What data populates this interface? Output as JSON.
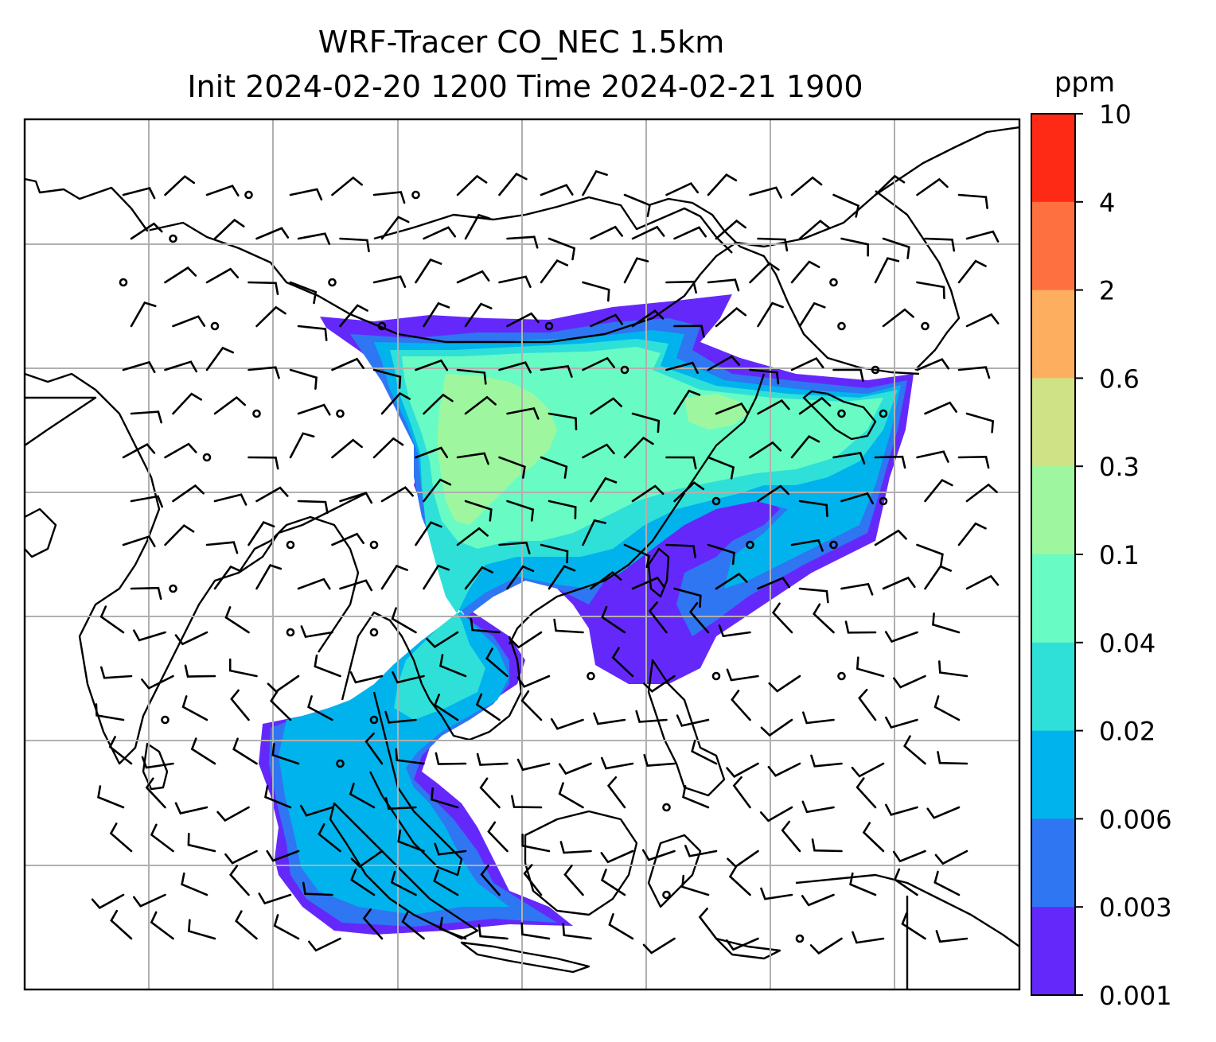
{
  "title": {
    "line1": "WRF-Tracer CO_NEC 1.5km",
    "line2": "Init 2024-02-20 1200 Time 2024-02-21 1900"
  },
  "colorbar": {
    "unit": "ppm",
    "levels": [
      {
        "label": "10",
        "color": "#ff2a16"
      },
      {
        "label": "4",
        "color": "#ff7040"
      },
      {
        "label": "2",
        "color": "#fdae5f"
      },
      {
        "label": "0.6",
        "color": "#cfe285"
      },
      {
        "label": "0.3",
        "color": "#9ef79e"
      },
      {
        "label": "0.1",
        "color": "#68fcc4"
      },
      {
        "label": "0.04",
        "color": "#2fe0d8"
      },
      {
        "label": "0.02",
        "color": "#00b3ec"
      },
      {
        "label": "0.006",
        "color": "#2f76f2"
      },
      {
        "label": "0.003",
        "color": "#6429fa"
      },
      {
        "label": "0.001",
        "color": ""
      }
    ]
  },
  "map": {
    "grid": "on",
    "colors": {
      "coastline": "#000000",
      "grid": "#b0b0b0",
      "wind_barbs": "#000000"
    }
  }
}
